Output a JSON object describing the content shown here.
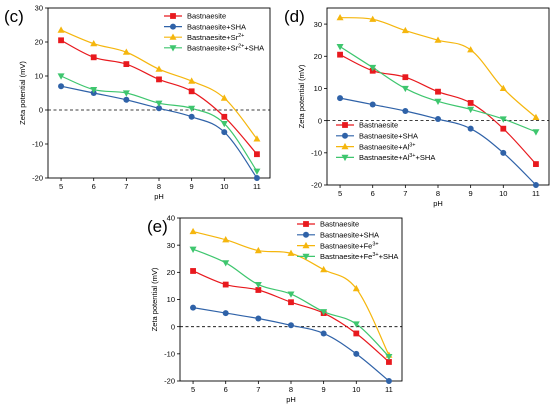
{
  "chart_data": [
    {
      "type": "line",
      "panel_label": "(c)",
      "xlabel": "pH",
      "ylabel": "Zeta potential (mV)",
      "xlim": [
        4.6,
        11.4
      ],
      "ylim": [
        -20,
        30
      ],
      "xticks": [
        5,
        6,
        7,
        8,
        9,
        10,
        11
      ],
      "yticks": [
        -20,
        -10,
        0,
        10,
        20,
        30
      ],
      "zero_line": true,
      "legend_position": "top-right",
      "x": [
        5,
        6,
        7,
        8,
        9,
        10,
        11
      ],
      "series": [
        {
          "name": "Bastnaesite",
          "color": "#e8191e",
          "marker": "square",
          "values": [
            20.5,
            15.5,
            13.5,
            9,
            5.5,
            -2,
            -13
          ]
        },
        {
          "name": "Bastnaesite+SHA",
          "color": "#2f62a8",
          "marker": "circle",
          "values": [
            7,
            5,
            3,
            0.5,
            -2,
            -6.5,
            -20
          ]
        },
        {
          "name": "Bastnaesite+Sr2+",
          "label_main": "Bastnaesite+Sr",
          "label_sup": "2+",
          "label_tail": "",
          "color": "#f5b60d",
          "marker": "triangle-up",
          "values": [
            23.5,
            19.5,
            17,
            12,
            8.5,
            3.5,
            -8.5
          ]
        },
        {
          "name": "Bastnaesite+Sr2++SHA",
          "label_main": "Bastnaesite+Sr",
          "label_sup": "2+",
          "label_tail": "+SHA",
          "color": "#3ec66e",
          "marker": "triangle-down",
          "values": [
            10,
            6,
            5,
            2,
            0.5,
            -4,
            -18
          ]
        }
      ]
    },
    {
      "type": "line",
      "panel_label": "(d)",
      "xlabel": "pH",
      "ylabel": "Zeta potential (mV)",
      "xlim": [
        4.6,
        11.4
      ],
      "ylim": [
        -20,
        35
      ],
      "xticks": [
        5,
        6,
        7,
        8,
        9,
        10,
        11
      ],
      "yticks": [
        -20,
        -10,
        0,
        10,
        20,
        30
      ],
      "zero_line": true,
      "legend_position": "bottom-left",
      "x": [
        5,
        6,
        7,
        8,
        9,
        10,
        11
      ],
      "series": [
        {
          "name": "Bastnaesite",
          "color": "#e8191e",
          "marker": "square",
          "values": [
            20.5,
            15.5,
            13.5,
            9,
            5.5,
            -2.5,
            -13.5
          ]
        },
        {
          "name": "Bastnaesite+SHA",
          "color": "#2f62a8",
          "marker": "circle",
          "values": [
            7,
            5,
            3,
            0.5,
            -2.5,
            -10,
            -20
          ]
        },
        {
          "name": "Bastnaesite+Al3+",
          "label_main": "Bastnaesite+Al",
          "label_sup": "3+",
          "label_tail": "",
          "color": "#f5b60d",
          "marker": "triangle-up",
          "values": [
            32,
            31.5,
            28,
            25,
            22,
            10,
            1
          ]
        },
        {
          "name": "Bastnaesite+Al3++SHA",
          "label_main": "Bastnaesite+Al",
          "label_sup": "3+",
          "label_tail": "+SHA",
          "color": "#3ec66e",
          "marker": "triangle-down",
          "values": [
            23,
            16.5,
            10,
            6,
            3.5,
            0.5,
            -3.5
          ]
        }
      ]
    },
    {
      "type": "line",
      "panel_label": "(e)",
      "xlabel": "pH",
      "ylabel": "Zeta potential (mV)",
      "xlim": [
        4.6,
        11.4
      ],
      "ylim": [
        -20,
        40
      ],
      "xticks": [
        5,
        6,
        7,
        8,
        9,
        10,
        11
      ],
      "yticks": [
        -20,
        -10,
        0,
        10,
        20,
        30,
        40
      ],
      "zero_line": true,
      "legend_position": "top-center",
      "x": [
        5,
        6,
        7,
        8,
        9,
        10,
        11
      ],
      "series": [
        {
          "name": "Bastnaesite",
          "color": "#e8191e",
          "marker": "square",
          "values": [
            20.5,
            15.5,
            13.5,
            9,
            5,
            -2.5,
            -13
          ]
        },
        {
          "name": "Bastnaesite+SHA",
          "color": "#2f62a8",
          "marker": "circle",
          "values": [
            7,
            5,
            3,
            0.5,
            -2.5,
            -10,
            -20
          ]
        },
        {
          "name": "Bastnaesite+Fe3+",
          "label_main": "Bastnaesite+Fe",
          "label_sup": "3+",
          "label_tail": "",
          "color": "#f5b60d",
          "marker": "triangle-up",
          "values": [
            35,
            32,
            28,
            27,
            21,
            14,
            -10.5
          ]
        },
        {
          "name": "Bastnaesite+Fe3++SHA",
          "label_main": "Bastnaesite+Fe",
          "label_sup": "3+",
          "label_tail": "+SHA",
          "color": "#3ec66e",
          "marker": "triangle-down",
          "values": [
            28.5,
            23.5,
            15.5,
            12,
            5.5,
            1,
            -11
          ]
        }
      ]
    }
  ]
}
